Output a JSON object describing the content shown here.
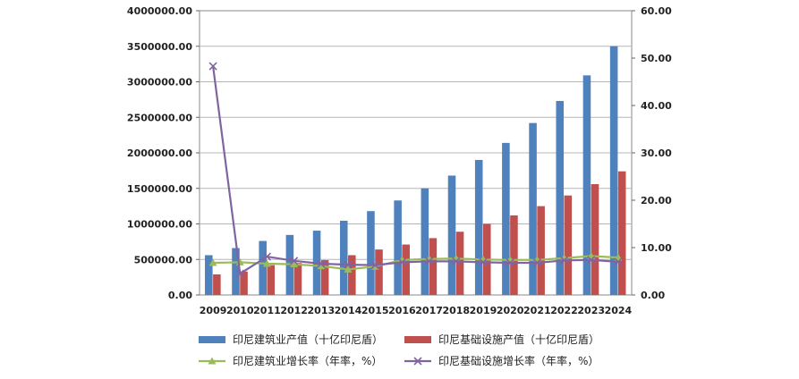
{
  "chart_data": {
    "type": "bar",
    "categories": [
      "2009",
      "2010",
      "2011",
      "2012",
      "2013",
      "2014",
      "2015",
      "2016",
      "2017",
      "2018",
      "2019",
      "2020",
      "2021",
      "2022",
      "2023",
      "2024"
    ],
    "ylim_left": [
      0,
      4000000
    ],
    "yticks_left": [
      "0.00",
      "500000.00",
      "1000000.00",
      "1500000.00",
      "2000000.00",
      "2500000.00",
      "3000000.00",
      "3500000.00",
      "4000000.00"
    ],
    "ylim_right": [
      0,
      60
    ],
    "yticks_right": [
      "0.00",
      "10.00",
      "20.00",
      "30.00",
      "40.00",
      "50.00",
      "60.00"
    ],
    "grid": true,
    "legend_position": "bottom",
    "series": [
      {
        "name": "印尼建筑业产值（十亿印尼盾）",
        "kind": "bar",
        "axis": "left",
        "color": "#4F81BD",
        "values": [
          560000,
          660000,
          760000,
          845000,
          905000,
          1045000,
          1180000,
          1330000,
          1500000,
          1680000,
          1900000,
          2140000,
          2420000,
          2730000,
          3090000,
          3500000
        ]
      },
      {
        "name": "印尼基础设施产值（十亿印尼盾）",
        "kind": "bar",
        "axis": "left",
        "color": "#C0504D",
        "values": [
          290000,
          330000,
          420000,
          450000,
          490000,
          560000,
          640000,
          710000,
          800000,
          890000,
          1000000,
          1120000,
          1250000,
          1400000,
          1560000,
          1740000
        ]
      },
      {
        "name": "印尼建筑业增长率（年率，%）",
        "kind": "line",
        "axis": "right",
        "color": "#9BBB59",
        "marker": "triangle",
        "values": [
          6.8,
          6.9,
          6.6,
          6.5,
          6.1,
          5.4,
          6.0,
          7.4,
          7.6,
          7.7,
          7.5,
          7.4,
          7.4,
          7.8,
          8.2,
          7.9
        ]
      },
      {
        "name": "印尼基础设施增长率（年率，%）",
        "kind": "line",
        "axis": "right",
        "color": "#8064A2",
        "marker": "x",
        "values": [
          48.3,
          4.5,
          8.1,
          7.2,
          6.6,
          6.4,
          6.3,
          6.9,
          7.1,
          7.1,
          6.9,
          6.8,
          6.8,
          7.3,
          7.4,
          7.0
        ]
      }
    ]
  }
}
